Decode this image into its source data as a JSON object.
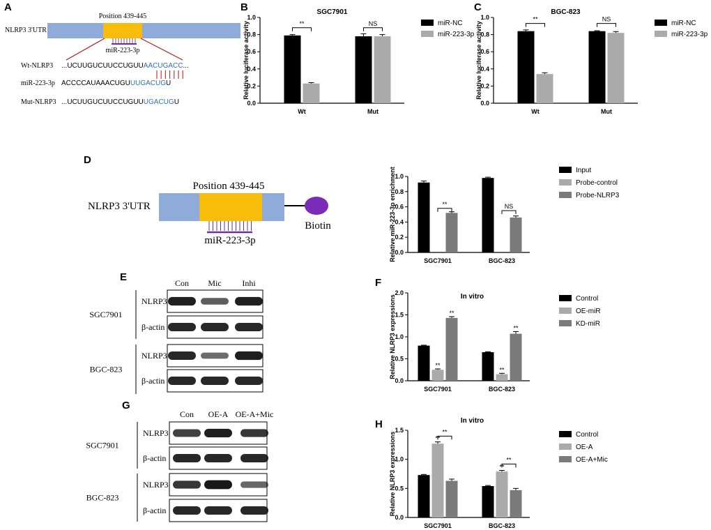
{
  "colors": {
    "black": "#000000",
    "light_gray": "#aaaaaa",
    "dark_gray": "#7a7a7a",
    "utr_blue": "#8fabda",
    "site_yellow": "#f8bd0b",
    "seq_blue": "#2f6fb0",
    "pair_red": "#cc2020",
    "purple": "#6b2f9e",
    "biotin": "#7a2bb8"
  },
  "panels": {
    "A": {
      "letter": "A",
      "utr_label": "NLRP3 3'UTR",
      "position": "Position 439-445",
      "mirna": "miR-223-3p",
      "rows": [
        {
          "name": "Wt-NLRP3",
          "prefix": "...",
          "plain": "UCUUGUCUUCCUGUU",
          "blue": "AACUGACC",
          "suffix": "..."
        },
        {
          "name": "miR-223-3p",
          "prefix": "",
          "plain": "ACCCCAUAAACUGU",
          "blue": "UUGACUG",
          "suffix": "U"
        },
        {
          "name": "Mut-NLRP3",
          "prefix": "...",
          "plain": "UCUUGUCUUCCUGUU",
          "blue": "UGACUG",
          "suffix": "U"
        }
      ]
    },
    "D": {
      "letter": "D",
      "utr_label": "NLRP3 3'UTR",
      "position": "Position 439-445",
      "mirna": "miR-223-3p",
      "biotin": "Biotin"
    },
    "E": {
      "letter": "E",
      "lanes": [
        "Con",
        "Mic",
        "Inhi"
      ],
      "blocks": [
        {
          "cell": "SGC7901",
          "rows": [
            {
              "label": "NLRP3",
              "intensity": [
                0.9,
                0.5,
                0.9
              ]
            },
            {
              "label": "β-actin",
              "intensity": [
                0.85,
                0.85,
                0.85
              ]
            }
          ]
        },
        {
          "cell": "BGC-823",
          "rows": [
            {
              "label": "NLRP3",
              "intensity": [
                0.85,
                0.4,
                0.9
              ]
            },
            {
              "label": "β-actin",
              "intensity": [
                0.85,
                0.85,
                0.85
              ]
            }
          ]
        }
      ]
    },
    "G": {
      "letter": "G",
      "lanes": [
        "Con",
        "OE-A",
        "OE-A+Mic"
      ],
      "blocks": [
        {
          "cell": "SGC7901",
          "rows": [
            {
              "label": "NLRP3",
              "intensity": [
                0.7,
                0.9,
                0.75
              ]
            },
            {
              "label": "β-actin",
              "intensity": [
                0.85,
                0.85,
                0.85
              ]
            }
          ]
        },
        {
          "cell": "BGC-823",
          "rows": [
            {
              "label": "NLRP3",
              "intensity": [
                0.75,
                0.95,
                0.45
              ]
            },
            {
              "label": "β-actin",
              "intensity": [
                0.85,
                0.85,
                0.85
              ]
            }
          ]
        }
      ]
    }
  },
  "chart_data": [
    {
      "id": "B",
      "letter": "B",
      "type": "bar",
      "title": "SGC7901",
      "xlabel": "",
      "ylabel": "Relative luciferase activity",
      "ylim": [
        0,
        1.0
      ],
      "yticks": [
        0.0,
        0.2,
        0.4,
        0.6,
        0.8,
        1.0
      ],
      "tick_labels": [
        "0.0",
        "0.2",
        "0.4",
        "0.6",
        "0.8",
        "1.0"
      ],
      "categories": [
        "Wt",
        "Mut"
      ],
      "series": [
        {
          "name": "miR-NC",
          "color": "#000000",
          "values": [
            0.79,
            0.78
          ],
          "errors": [
            0.01,
            0.03
          ]
        },
        {
          "name": "miR-223-3p",
          "color": "#aaaaaa",
          "values": [
            0.23,
            0.78
          ],
          "errors": [
            0.01,
            0.02
          ]
        }
      ],
      "annotations": [
        {
          "text": "**",
          "category": 0,
          "from": 0,
          "to": 1,
          "y": 0.88
        },
        {
          "text": "NS",
          "category": 1,
          "from": 0,
          "to": 1,
          "y": 0.88
        }
      ],
      "legend": "right"
    },
    {
      "id": "C",
      "letter": "C",
      "type": "bar",
      "title": "BGC-823",
      "xlabel": "",
      "ylabel": "Relative luciferase activity",
      "ylim": [
        0,
        1.0
      ],
      "yticks": [
        0.0,
        0.2,
        0.4,
        0.6,
        0.8,
        1.0
      ],
      "tick_labels": [
        "0.0",
        "0.2",
        "0.4",
        "0.6",
        "0.8",
        "1.0"
      ],
      "categories": [
        "Wt",
        "Mut"
      ],
      "series": [
        {
          "name": "miR-NC",
          "color": "#000000",
          "values": [
            0.84,
            0.84
          ],
          "errors": [
            0.015,
            0.005
          ]
        },
        {
          "name": "miR-223-3p",
          "color": "#aaaaaa",
          "values": [
            0.34,
            0.82
          ],
          "errors": [
            0.015,
            0.015
          ]
        }
      ],
      "annotations": [
        {
          "text": "**",
          "category": 0,
          "from": 0,
          "to": 1,
          "y": 0.93
        },
        {
          "text": "NS",
          "category": 1,
          "from": 0,
          "to": 1,
          "y": 0.93
        }
      ],
      "legend": "right"
    },
    {
      "id": "D",
      "letter": "",
      "type": "bar",
      "title": "",
      "xlabel": "",
      "ylabel": "Relative miR-223-3p enrichment",
      "ylim": [
        0,
        1.0
      ],
      "yticks": [
        0.0,
        0.2,
        0.4,
        0.6,
        0.8,
        1.0
      ],
      "tick_labels": [
        "0.0",
        "0.2",
        "0.4",
        "0.6",
        "0.8",
        "1.0"
      ],
      "categories": [
        "SGC7901",
        "BGC-823"
      ],
      "series": [
        {
          "name": "Input",
          "color": "#000000",
          "values": [
            0.92,
            0.98
          ],
          "errors": [
            0.02,
            0.01
          ]
        },
        {
          "name": "Probe-control",
          "color": "#aaaaaa",
          "values": [
            0.0,
            0.0
          ],
          "errors": [
            0,
            0
          ]
        },
        {
          "name": "Probe-NLRP3",
          "color": "#7a7a7a",
          "values": [
            0.52,
            0.46
          ],
          "errors": [
            0.015,
            0.02
          ]
        }
      ],
      "annotations": [
        {
          "text": "**",
          "category": 0,
          "from": 1,
          "to": 2,
          "y": 0.58
        },
        {
          "text": "NS",
          "category": 1,
          "from": 1,
          "to": 2,
          "y": 0.55
        }
      ],
      "legend": "right"
    },
    {
      "id": "F",
      "letter": "F",
      "type": "bar",
      "title": "In vitro",
      "xlabel": "",
      "ylabel": "Relative NLRP3 expressions",
      "ylim": [
        0,
        2.0
      ],
      "yticks": [
        0.0,
        0.5,
        1.0,
        1.5,
        2.0
      ],
      "tick_labels": [
        "0.0",
        "0.5",
        "1.0",
        "1.5",
        "2.0"
      ],
      "categories": [
        "SGC7901",
        "BGC-823"
      ],
      "series": [
        {
          "name": "Control",
          "color": "#000000",
          "values": [
            0.8,
            0.65
          ],
          "errors": [
            0.01,
            0.01
          ]
        },
        {
          "name": "OE-miR",
          "color": "#aaaaaa",
          "values": [
            0.25,
            0.15
          ],
          "errors": [
            0.02,
            0.02
          ]
        },
        {
          "name": "KD-miR",
          "color": "#7a7a7a",
          "values": [
            1.43,
            1.07
          ],
          "errors": [
            0.03,
            0.05
          ]
        }
      ],
      "stars": [
        {
          "text": "**",
          "category": 0,
          "series": 1
        },
        {
          "text": "**",
          "category": 0,
          "series": 2
        },
        {
          "text": "**",
          "category": 1,
          "series": 1
        },
        {
          "text": "**",
          "category": 1,
          "series": 2
        }
      ],
      "legend": "right"
    },
    {
      "id": "H",
      "letter": "H",
      "type": "bar",
      "title": "In vitro",
      "xlabel": "",
      "ylabel": "Relative NLRP3 expressions",
      "ylim": [
        0,
        1.5
      ],
      "yticks": [
        0.0,
        0.5,
        1.0,
        1.5
      ],
      "tick_labels": [
        "0.0",
        "0.5",
        "1.0",
        "1.5"
      ],
      "categories": [
        "SGC7901",
        "BGC-823"
      ],
      "series": [
        {
          "name": "Control",
          "color": "#000000",
          "values": [
            0.73,
            0.54
          ],
          "errors": [
            0.01,
            0.01
          ]
        },
        {
          "name": "OE-A",
          "color": "#aaaaaa",
          "values": [
            1.27,
            0.79
          ],
          "errors": [
            0.03,
            0.02
          ]
        },
        {
          "name": "OE-A+Mic",
          "color": "#7a7a7a",
          "values": [
            0.63,
            0.47
          ],
          "errors": [
            0.03,
            0.03
          ]
        }
      ],
      "stars": [
        {
          "text": "**",
          "category": 0,
          "series": 1
        },
        {
          "text": "**",
          "category": 1,
          "series": 1
        }
      ],
      "annotations": [
        {
          "text": "**",
          "category": 0,
          "from": 1,
          "to": 2,
          "y": 1.4
        },
        {
          "text": "**",
          "category": 1,
          "from": 1,
          "to": 2,
          "y": 0.92
        }
      ],
      "legend": "right"
    }
  ]
}
